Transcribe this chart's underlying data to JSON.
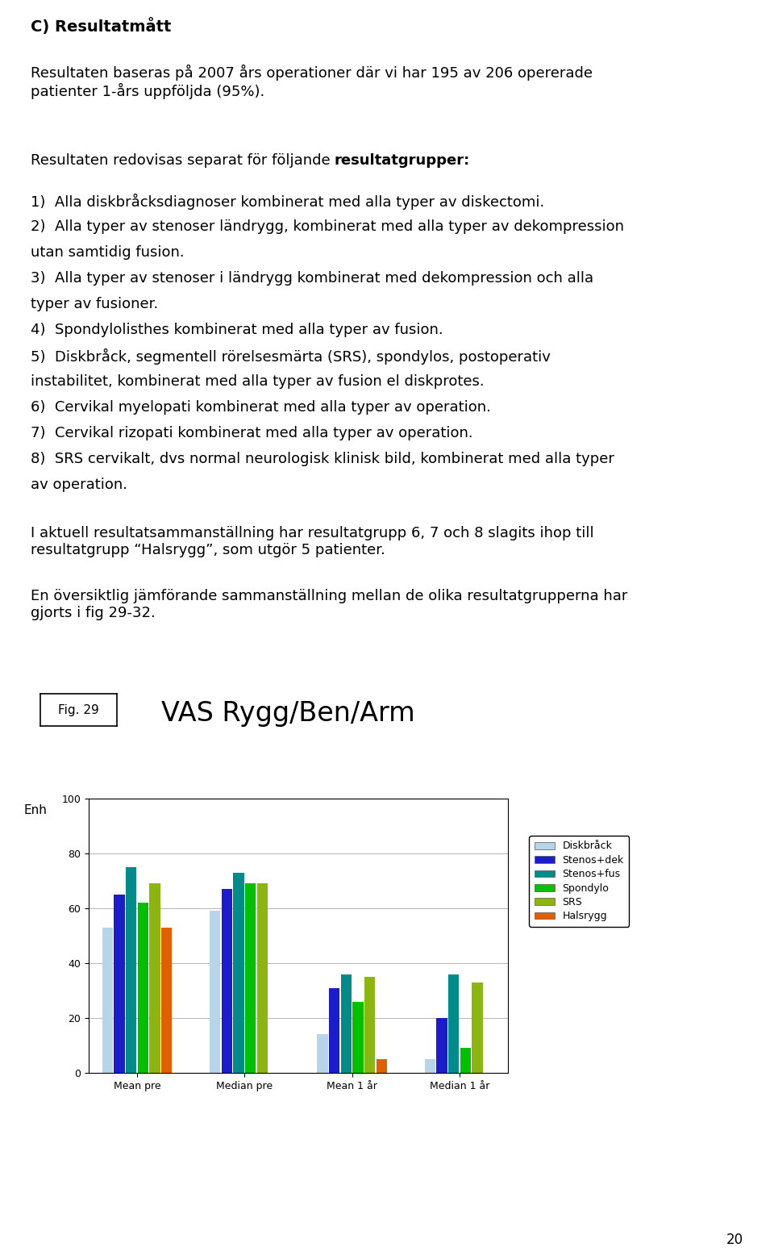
{
  "title": "VAS Rygg/Ben/Arm",
  "fig_label": "Fig. 29",
  "ylabel": "Enh",
  "ylim": [
    0,
    100
  ],
  "yticks": [
    0,
    20,
    40,
    60,
    80,
    100
  ],
  "categories": [
    "Mean pre",
    "Median pre",
    "Mean 1 år",
    "Median 1 år"
  ],
  "series": [
    {
      "name": "Diskbråck",
      "color": "#b8d4e8",
      "values": [
        53,
        59,
        14,
        5
      ]
    },
    {
      "name": "Stenos+dek",
      "color": "#1c1ccd",
      "values": [
        65,
        67,
        31,
        20
      ]
    },
    {
      "name": "Stenos+fus",
      "color": "#008b8b",
      "values": [
        75,
        73,
        36,
        36
      ]
    },
    {
      "name": "Spondylo",
      "color": "#00c000",
      "values": [
        62,
        69,
        26,
        9
      ]
    },
    {
      "name": "SRS",
      "color": "#8db510",
      "values": [
        69,
        69,
        35,
        33
      ]
    },
    {
      "name": "Halsrygg",
      "color": "#e06000",
      "values": [
        53,
        0,
        5,
        0
      ]
    }
  ],
  "background_color": "#ffffff",
  "page_number": "20",
  "heading": "C) Resultatmått",
  "para1": "Resultaten baseras på 2007 års operationer där vi har 195 av 206 opererade\npatienter 1-års uppföljda (95%).",
  "para2_intro": "Resultaten redovisas separat för följande ",
  "para2_bold": "resultatgrupper:",
  "para2_items": [
    "1)  Alla diskbråcksdiagnoser kombinerat med alla typer av diskectomi.",
    "2)  Alla typer av stenoser ländrygg, kombinerat med alla typer av dekompression\n    utan samtidig fusion.",
    "3)  Alla typer av stenoser i ländrygg kombinerat med dekompression och alla\n    typer av fusioner.",
    "4)  Spondylolisthes kombinerat med alla typer av fusion.",
    "5)  Diskbråck, segmentell rörelsesmärta (SRS), spondylos, postoperativ\n    instabilitet, kombinerat med alla typer av fusion el diskprotes.",
    "6)  Cervikal myelopati kombinerat med alla typer av operation.",
    "7)  Cervikal rizopati kombinerat med alla typer av operation.",
    "8)  SRS cervikalt, dvs normal neurologisk klinisk bild, kombinerat med alla typer\n    av operation."
  ],
  "para3": "I aktuell resultatsammanställning har resultatgrupp 6, 7 och 8 slagits ihop till\nresultatgrupp “Halsrygg”, som utgör 5 patienter.",
  "para4": "En översiktlig jämförande sammanställning mellan de olika resultatgrupperna har\ngjorts i fig 29-32."
}
